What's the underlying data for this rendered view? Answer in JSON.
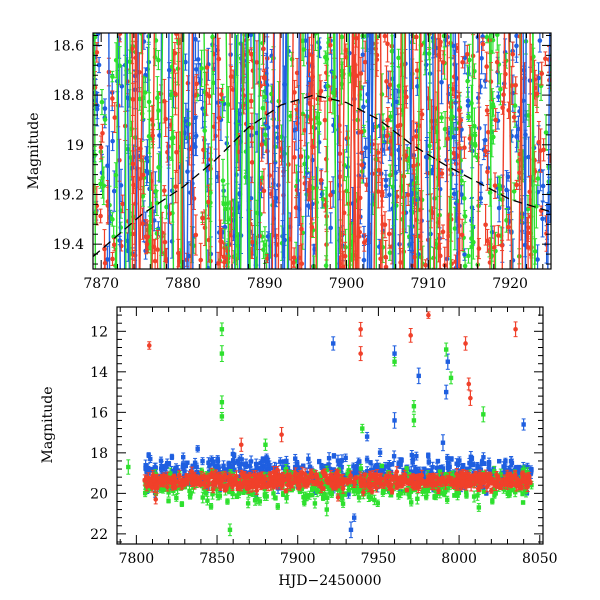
{
  "chart_data": [
    {
      "type": "scatter",
      "panel": "top",
      "title": "",
      "xlabel": "",
      "ylabel": "Magnitude",
      "xlim": [
        7869,
        7925
      ],
      "ylim": [
        19.5,
        18.55
      ],
      "y_inverted": true,
      "x_ticks": [
        7870,
        7880,
        7890,
        7900,
        7910,
        7920
      ],
      "x_tick_labels": [
        "7870",
        "7880",
        "7890",
        "7900",
        "7910",
        "7920"
      ],
      "y_ticks": [
        18.6,
        18.8,
        19,
        19.2,
        19.4
      ],
      "y_tick_labels": [
        "18.6",
        "18.8",
        "19",
        "19.2",
        "19.4"
      ],
      "grid": false,
      "legend": "none",
      "series": [
        {
          "color": "#1f5fe0",
          "marker": "circle with error bars",
          "x_range": [
            7869,
            7925
          ],
          "y_range": [
            18.55,
            19.5
          ],
          "approx_points": 360
        },
        {
          "color": "#2ee02e",
          "marker": "circle with error bars",
          "x_range": [
            7869,
            7925
          ],
          "y_range": [
            18.55,
            19.5
          ],
          "approx_points": 320
        },
        {
          "color": "#f0402a",
          "marker": "circle with error bars",
          "x_range": [
            7869,
            7925
          ],
          "y_range": [
            18.55,
            19.5
          ],
          "approx_points": 380
        }
      ],
      "model_curve": {
        "style": "dashed",
        "color": "#000000",
        "x": [
          7869,
          7875,
          7880,
          7884,
          7888,
          7892,
          7896,
          7900,
          7904,
          7908,
          7912,
          7916,
          7920,
          7925
        ],
        "y": [
          19.45,
          19.28,
          19.17,
          19.06,
          18.93,
          18.84,
          18.8,
          18.83,
          18.9,
          19.0,
          19.08,
          19.15,
          19.22,
          19.27
        ]
      }
    },
    {
      "type": "scatter",
      "panel": "bottom",
      "title": "",
      "xlabel": "HJD−2450000",
      "ylabel": "Magnitude",
      "xlim": [
        7788,
        8052
      ],
      "ylim": [
        22.5,
        10.8
      ],
      "y_inverted": true,
      "x_ticks": [
        7800,
        7850,
        7900,
        7950,
        8000,
        8050
      ],
      "x_tick_labels": [
        "7800",
        "7850",
        "7900",
        "7950",
        "8000",
        "8050"
      ],
      "y_ticks": [
        12,
        14,
        16,
        18,
        20,
        22
      ],
      "y_tick_labels": [
        "12",
        "14",
        "16",
        "18",
        "20",
        "22"
      ],
      "grid": false,
      "legend": "none",
      "series": [
        {
          "color": "#1f5fe0",
          "marker": "square with error bars",
          "main_band": {
            "x_range": [
              7805,
              8045
            ],
            "y_range": [
              17.8,
              20.2
            ]
          },
          "outliers": [
            [
              7922,
              12.6
            ],
            [
              7960,
              13.1
            ],
            [
              7975,
              14.2
            ],
            [
              7992,
              15.0
            ],
            [
              7993,
              13.5
            ],
            [
              7838,
              17.8
            ],
            [
              7933,
              21.8
            ],
            [
              7935,
              21.2
            ],
            [
              7990,
              17.5
            ],
            [
              8040,
              16.6
            ],
            [
              7960,
              16.4
            ],
            [
              7943,
              17.2
            ]
          ]
        },
        {
          "color": "#2ee02e",
          "marker": "square with error bars",
          "main_band": {
            "x_range": [
              7805,
              8045
            ],
            "y_range": [
              18.5,
              20.8
            ]
          },
          "outliers": [
            [
              7853,
              11.9
            ],
            [
              7853,
              13.1
            ],
            [
              7853,
              15.5
            ],
            [
              7853,
              16.2
            ],
            [
              7858,
              21.8
            ],
            [
              7795,
              18.7
            ],
            [
              7960,
              13.5
            ],
            [
              7992,
              12.9
            ],
            [
              7995,
              14.3
            ],
            [
              7972,
              15.7
            ],
            [
              7972,
              16.4
            ],
            [
              7940,
              16.8
            ],
            [
              8015,
              16.1
            ],
            [
              7880,
              17.6
            ],
            [
              7918,
              20.8
            ],
            [
              8040,
              19.7
            ]
          ]
        },
        {
          "color": "#f0402a",
          "marker": "circle with error bars",
          "main_band": {
            "x_range": [
              7805,
              8045
            ],
            "y_range": [
              18.8,
              20.0
            ]
          },
          "outliers": [
            [
              7808,
              12.7
            ],
            [
              7939,
              11.9
            ],
            [
              7939,
              13.1
            ],
            [
              7970,
              12.2
            ],
            [
              7981,
              11.2
            ],
            [
              8004,
              12.6
            ],
            [
              8006,
              14.6
            ],
            [
              8007,
              15.3
            ],
            [
              8035,
              11.9
            ],
            [
              7812,
              20.3
            ],
            [
              7865,
              17.6
            ],
            [
              7890,
              17.1
            ],
            [
              7925,
              20.2
            ]
          ]
        }
      ]
    }
  ]
}
